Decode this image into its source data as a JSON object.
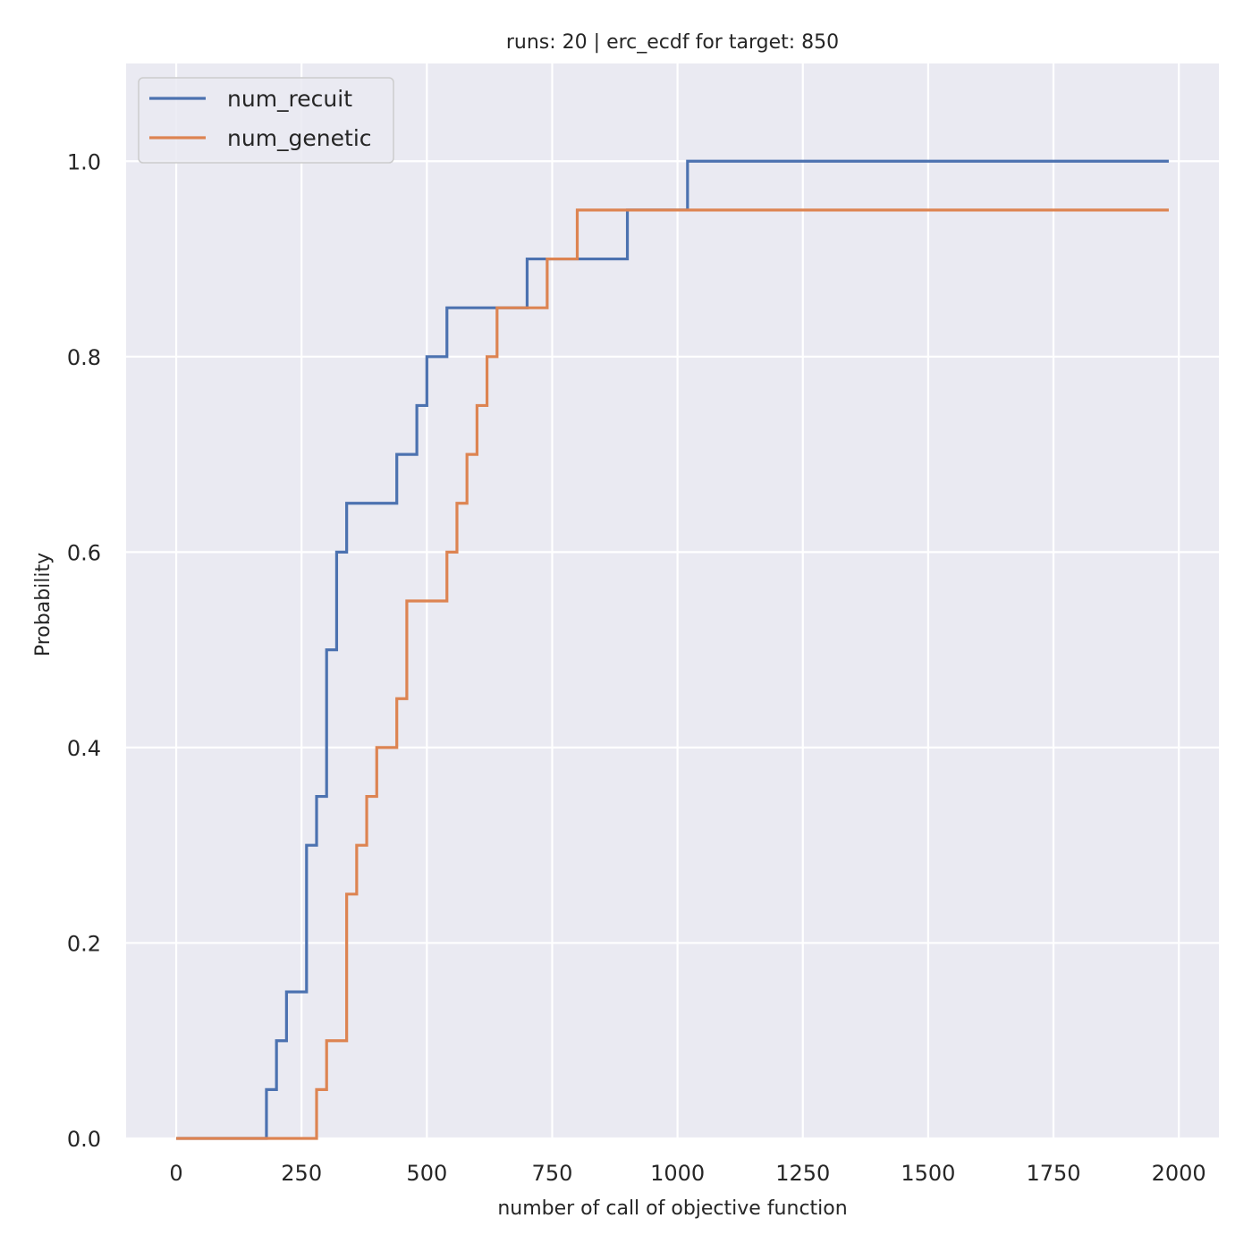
{
  "chart_data": {
    "type": "line",
    "step": "post",
    "title": "runs: 20 | erc_ecdf for target: 850",
    "xlabel": "number of call of objective function",
    "ylabel": "Probability",
    "xlim": [
      -100,
      2080
    ],
    "ylim": [
      0,
      1.1
    ],
    "x_ticks": [
      0,
      250,
      500,
      750,
      1000,
      1250,
      1500,
      1750,
      2000
    ],
    "x_tick_labels": [
      "0",
      "250",
      "500",
      "750",
      "1000",
      "1250",
      "1500",
      "1750",
      "2000"
    ],
    "y_ticks": [
      0.0,
      0.2,
      0.4,
      0.6,
      0.8,
      1.0
    ],
    "y_tick_labels": [
      "0.0",
      "0.2",
      "0.4",
      "0.6",
      "0.8",
      "1.0"
    ],
    "grid": true,
    "legend_position": "upper left",
    "background_color": "#eaeaf2",
    "grid_color": "#ffffff",
    "series": [
      {
        "name": "num_recuit",
        "color": "#4c72b0",
        "points": [
          [
            0,
            0.0
          ],
          [
            180,
            0.05
          ],
          [
            200,
            0.1
          ],
          [
            220,
            0.15
          ],
          [
            260,
            0.3
          ],
          [
            280,
            0.35
          ],
          [
            300,
            0.5
          ],
          [
            320,
            0.6
          ],
          [
            340,
            0.65
          ],
          [
            440,
            0.7
          ],
          [
            480,
            0.75
          ],
          [
            500,
            0.8
          ],
          [
            540,
            0.85
          ],
          [
            700,
            0.9
          ],
          [
            900,
            0.95
          ],
          [
            1020,
            1.0
          ],
          [
            1980,
            1.0
          ]
        ]
      },
      {
        "name": "num_genetic",
        "color": "#dd8452",
        "points": [
          [
            0,
            0.0
          ],
          [
            280,
            0.05
          ],
          [
            300,
            0.1
          ],
          [
            340,
            0.25
          ],
          [
            360,
            0.3
          ],
          [
            380,
            0.35
          ],
          [
            400,
            0.4
          ],
          [
            440,
            0.45
          ],
          [
            460,
            0.55
          ],
          [
            540,
            0.6
          ],
          [
            560,
            0.65
          ],
          [
            580,
            0.7
          ],
          [
            600,
            0.75
          ],
          [
            620,
            0.8
          ],
          [
            640,
            0.85
          ],
          [
            740,
            0.9
          ],
          [
            800,
            0.95
          ],
          [
            1980,
            0.95
          ]
        ]
      }
    ]
  }
}
